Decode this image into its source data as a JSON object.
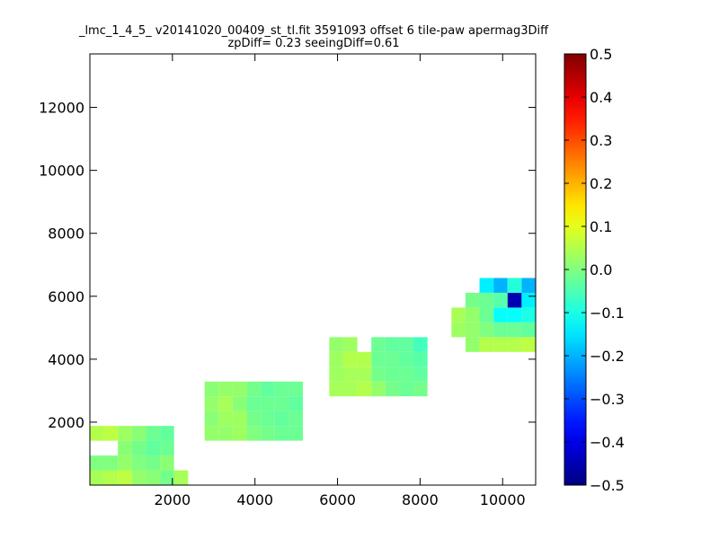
{
  "chart_data": {
    "type": "heatmap",
    "title_lines": [
      "_lmc_1_4_5_ v20141020_00409_st_tl.fit 3591093 offset 6 tile-paw apermag3Diff",
      "zpDiff= 0.23 seeingDiff=0.61"
    ],
    "xlabel": "",
    "ylabel": "",
    "xlim": [
      0,
      10800
    ],
    "ylim": [
      0,
      13700
    ],
    "xticks": [
      2000,
      4000,
      6000,
      8000,
      10000
    ],
    "xtick_labels": [
      "2000",
      "4000",
      "6000",
      "8000",
      "10000"
    ],
    "yticks": [
      2000,
      4000,
      6000,
      8000,
      10000,
      12000
    ],
    "ytick_labels": [
      "2000",
      "4000",
      "6000",
      "8000",
      "10000",
      "12000"
    ],
    "colorbar": {
      "colormap": "jet",
      "vmin": -0.5,
      "vmax": 0.5,
      "ticks": [
        -0.5,
        -0.4,
        -0.3,
        -0.2,
        -0.1,
        0.0,
        0.1,
        0.2,
        0.3,
        0.4,
        0.5
      ],
      "tick_labels": [
        "−0.5",
        "−0.4",
        "−0.3",
        "−0.2",
        "−0.1",
        "0.0",
        "0.1",
        "0.2",
        "0.3",
        "0.4",
        "0.5"
      ]
    },
    "grid": false,
    "cell_width": 340,
    "cell_height": 470,
    "bands": [
      {
        "y0": 0,
        "y1": 2000,
        "cells": [
          [
            0,
            0.04
          ],
          [
            340,
            0.05
          ],
          [
            680,
            0.06
          ],
          [
            1020,
            0.02
          ],
          [
            1360,
            0.01
          ],
          [
            1700,
            -0.01
          ],
          [
            2040,
            0.04
          ],
          [
            0,
            0
          ],
          [
            340,
            0
          ],
          [
            680,
            0.02
          ],
          [
            1020,
            0
          ],
          [
            1360,
            -0.01
          ],
          [
            1700,
            0.01
          ],
          [
            680,
            0.01
          ],
          [
            1020,
            -0.01
          ],
          [
            1360,
            -0.03
          ],
          [
            1700,
            -0.02
          ],
          [
            0,
            0.05
          ],
          [
            340,
            0.06
          ],
          [
            680,
            0.03
          ],
          [
            1020,
            0.01
          ],
          [
            1360,
            -0.02
          ],
          [
            1700,
            -0.03
          ],
          [
            2780,
            0.02
          ],
          [
            3120,
            0.02
          ],
          [
            3460,
            0.03
          ],
          [
            3800,
            0
          ],
          [
            4140,
            -0.01
          ],
          [
            4480,
            -0.02
          ],
          [
            4820,
            -0.02
          ],
          [
            2780,
            0.01
          ],
          [
            3120,
            0.03
          ],
          [
            3460,
            0.03
          ],
          [
            3800,
            -0.01
          ],
          [
            4140,
            -0.02
          ],
          [
            4480,
            -0.03
          ],
          [
            4820,
            -0.02
          ],
          [
            2780,
            0.02
          ],
          [
            3120,
            0.04
          ],
          [
            3460,
            0.01
          ],
          [
            3800,
            -0.02
          ],
          [
            4140,
            -0.02
          ],
          [
            4480,
            -0.02
          ],
          [
            4820,
            -0.03
          ],
          [
            2780,
            0.01
          ],
          [
            3120,
            0.02
          ],
          [
            3460,
            0.02
          ],
          [
            3800,
            -0.01
          ],
          [
            4140,
            -0.03
          ],
          [
            4480,
            -0.02
          ],
          [
            4820,
            -0.02
          ],
          [
            5800,
            0.04
          ],
          [
            6140,
            0.04
          ],
          [
            6480,
            0.05
          ],
          [
            6820,
            0.02
          ],
          [
            7160,
            -0.01
          ],
          [
            7500,
            -0.02
          ],
          [
            7840,
            -0.01
          ],
          [
            5800,
            0.03
          ],
          [
            6140,
            0.04
          ],
          [
            6480,
            0.04
          ],
          [
            6820,
            -0.01
          ],
          [
            7160,
            -0.02
          ],
          [
            7500,
            -0.02
          ],
          [
            7840,
            -0.03
          ],
          [
            5800,
            0.03
          ],
          [
            6140,
            0.05
          ],
          [
            6480,
            0.05
          ],
          [
            6820,
            -0.02
          ],
          [
            7160,
            -0.02
          ],
          [
            7500,
            -0.03
          ],
          [
            7840,
            -0.04
          ],
          [
            5800,
            0.02
          ],
          [
            6140,
            0.03
          ],
          [
            6820,
            -0.02
          ],
          [
            7160,
            -0.03
          ],
          [
            7500,
            -0.03
          ],
          [
            7840,
            -0.06
          ],
          [
            9100,
            0.02
          ],
          [
            9440,
            0.05
          ],
          [
            9780,
            0.05
          ],
          [
            10120,
            0.05
          ],
          [
            10460,
            0.06
          ],
          [
            8760,
            0.03
          ],
          [
            9100,
            0.02
          ],
          [
            9440,
            0
          ],
          [
            9780,
            -0.02
          ],
          [
            10120,
            -0.02
          ],
          [
            10460,
            -0.03
          ],
          [
            8760,
            0.04
          ],
          [
            9100,
            0.02
          ],
          [
            9440,
            -0.02
          ],
          [
            9780,
            -0.12
          ],
          [
            10120,
            -0.12
          ],
          [
            10460,
            -0.1
          ],
          [
            9100,
            -0.01
          ],
          [
            9440,
            -0.02
          ],
          [
            9780,
            -0.04
          ],
          [
            10120,
            -0.45
          ],
          [
            10460,
            -0.14
          ],
          [
            9440,
            -0.14
          ],
          [
            9780,
            -0.2
          ],
          [
            10120,
            -0.09
          ],
          [
            10460,
            -0.2
          ]
        ]
      }
    ]
  }
}
